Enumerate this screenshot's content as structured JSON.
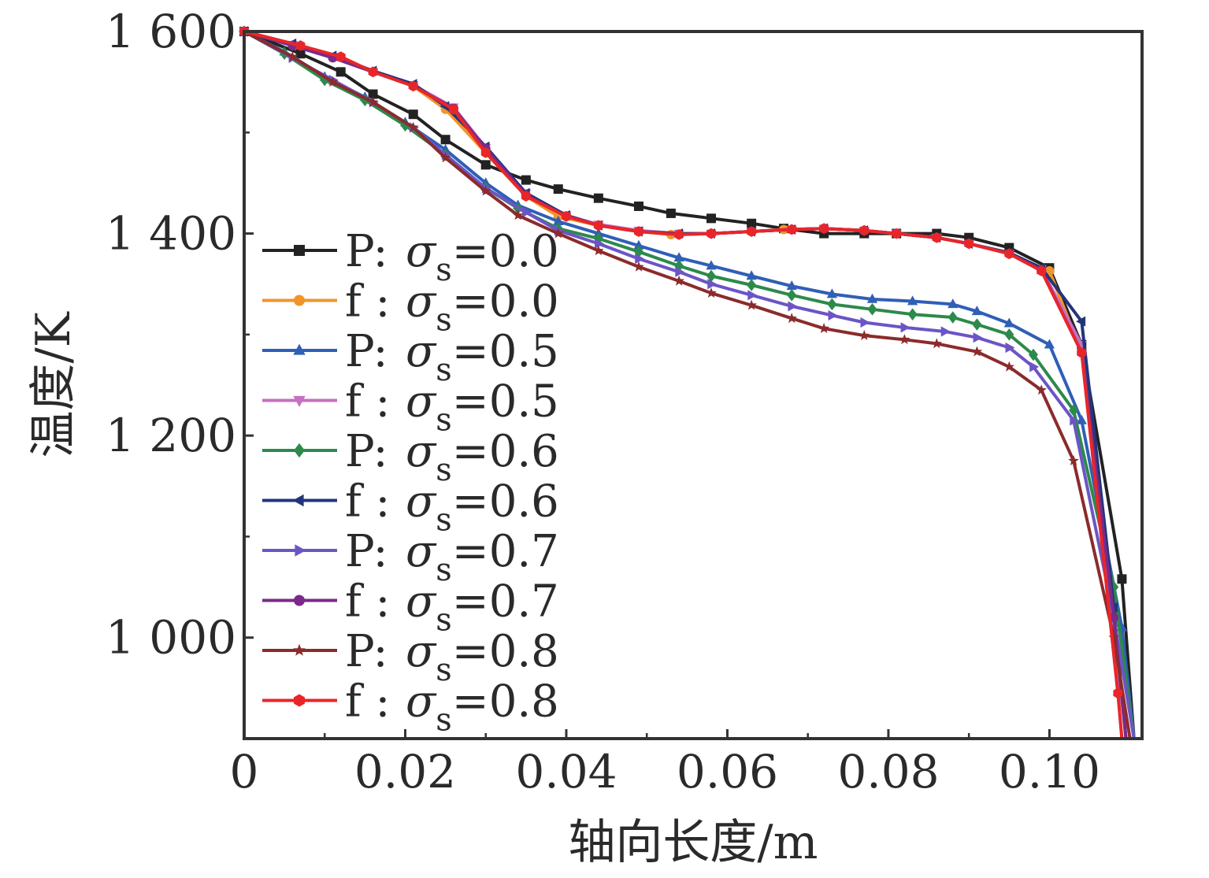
{
  "chart_data": {
    "type": "line",
    "xlabel": "轴向长度/m",
    "ylabel": "温度/K",
    "xlim": [
      0,
      0.1115
    ],
    "ylim": [
      900,
      1600
    ],
    "xticks": [
      {
        "value": 0,
        "label": "0"
      },
      {
        "value": 0.02,
        "label": "0.02"
      },
      {
        "value": 0.04,
        "label": "0.04"
      },
      {
        "value": 0.06,
        "label": "0.06"
      },
      {
        "value": 0.08,
        "label": "0.08"
      },
      {
        "value": 0.1,
        "label": "0.10"
      }
    ],
    "yticks": [
      {
        "value": 1000,
        "label": "1 000"
      },
      {
        "value": 1200,
        "label": "1 200"
      },
      {
        "value": 1400,
        "label": "1 400"
      },
      {
        "value": 1600,
        "label": "1 600"
      }
    ],
    "grid": false,
    "legend_position": "left",
    "series": [
      {
        "name": "P: σs=0.0",
        "prefix": "P: ",
        "sigma": "σ",
        "sub": "s",
        "value_text": "=0.0",
        "color": "#222222",
        "marker": "square",
        "x": [
          0,
          0.007,
          0.012,
          0.016,
          0.021,
          0.025,
          0.03,
          0.035,
          0.039,
          0.044,
          0.049,
          0.053,
          0.058,
          0.063,
          0.067,
          0.072,
          0.077,
          0.081,
          0.086,
          0.09,
          0.095,
          0.1,
          0.104,
          0.109,
          0.1105
        ],
        "y": [
          1600,
          1578,
          1560,
          1538,
          1518,
          1493,
          1468,
          1453,
          1444,
          1435,
          1427,
          1420,
          1415,
          1410,
          1405,
          1400,
          1400,
          1400,
          1400,
          1396,
          1386,
          1366,
          1290,
          1058,
          900
        ]
      },
      {
        "name": "f : σs=0.0",
        "prefix": "f : ",
        "sigma": "σ",
        "sub": "s",
        "value_text": "=0.0",
        "color": "#f0952c",
        "marker": "circle",
        "x": [
          0,
          0.007,
          0.012,
          0.016,
          0.021,
          0.025,
          0.03,
          0.035,
          0.039,
          0.044,
          0.049,
          0.053,
          0.058,
          0.063,
          0.067,
          0.072,
          0.077,
          0.081,
          0.086,
          0.09,
          0.095,
          0.1,
          0.104,
          0.1075,
          0.109
        ],
        "y": [
          1600,
          1586,
          1575,
          1560,
          1546,
          1523,
          1480,
          1437,
          1417,
          1408,
          1402,
          1399,
          1400,
          1402,
          1404,
          1405,
          1403,
          1400,
          1396,
          1390,
          1380,
          1363,
          1282,
          1040,
          900
        ]
      },
      {
        "name": "P: σs=0.5",
        "prefix": "P: ",
        "sigma": "σ",
        "sub": "s",
        "value_text": "=0.5",
        "color": "#2f5fb7",
        "marker": "triangle-up",
        "x": [
          0,
          0.005,
          0.01,
          0.015,
          0.02,
          0.025,
          0.03,
          0.034,
          0.039,
          0.044,
          0.049,
          0.054,
          0.058,
          0.063,
          0.068,
          0.073,
          0.078,
          0.083,
          0.088,
          0.091,
          0.095,
          0.1,
          0.104,
          0.109,
          0.1105
        ],
        "y": [
          1600,
          1580,
          1555,
          1535,
          1510,
          1483,
          1450,
          1428,
          1412,
          1400,
          1388,
          1376,
          1368,
          1358,
          1348,
          1340,
          1335,
          1333,
          1330,
          1323,
          1311,
          1290,
          1215,
          1010,
          900
        ]
      },
      {
        "name": "f : σs=0.5",
        "prefix": "f : ",
        "sigma": "σ",
        "sub": "s",
        "value_text": "=0.5",
        "color": "#c66fc4",
        "marker": "triangle-down",
        "x": [
          0,
          0.006,
          0.011,
          0.016,
          0.021,
          0.026,
          0.03,
          0.035,
          0.04,
          0.044,
          0.049,
          0.054,
          0.058,
          0.063,
          0.068,
          0.072,
          0.077,
          0.081,
          0.086,
          0.09,
          0.095,
          0.099,
          0.104,
          0.108,
          0.1095
        ],
        "y": [
          1600,
          1587,
          1575,
          1560,
          1547,
          1525,
          1485,
          1440,
          1418,
          1409,
          1403,
          1400,
          1400,
          1402,
          1404,
          1405,
          1403,
          1400,
          1396,
          1390,
          1380,
          1365,
          1290,
          1010,
          900
        ]
      },
      {
        "name": "P: σs=0.6",
        "prefix": "P: ",
        "sigma": "σ",
        "sub": "s",
        "value_text": "=0.6",
        "color": "#2c8a4a",
        "marker": "diamond",
        "x": [
          0,
          0.005,
          0.01,
          0.015,
          0.02,
          0.025,
          0.03,
          0.034,
          0.039,
          0.044,
          0.049,
          0.054,
          0.058,
          0.063,
          0.068,
          0.073,
          0.078,
          0.083,
          0.088,
          0.091,
          0.095,
          0.098,
          0.103,
          0.108,
          0.1105
        ],
        "y": [
          1600,
          1578,
          1552,
          1532,
          1507,
          1478,
          1445,
          1425,
          1405,
          1395,
          1382,
          1368,
          1358,
          1349,
          1339,
          1330,
          1325,
          1320,
          1317,
          1310,
          1300,
          1280,
          1225,
          1050,
          900
        ]
      },
      {
        "name": "f : σs=0.6",
        "prefix": "f : ",
        "sigma": "σ",
        "sub": "s",
        "value_text": "=0.6",
        "color": "#23357a",
        "marker": "triangle-left",
        "x": [
          0,
          0.006,
          0.011,
          0.016,
          0.021,
          0.025,
          0.03,
          0.035,
          0.04,
          0.044,
          0.049,
          0.054,
          0.058,
          0.063,
          0.068,
          0.072,
          0.077,
          0.081,
          0.086,
          0.09,
          0.095,
          0.099,
          0.104,
          0.108,
          0.1095
        ],
        "y": [
          1600,
          1588,
          1576,
          1561,
          1548,
          1526,
          1486,
          1440,
          1418,
          1408,
          1402,
          1400,
          1400,
          1402,
          1404,
          1405,
          1403,
          1400,
          1396,
          1390,
          1381,
          1366,
          1313,
          1030,
          900
        ]
      },
      {
        "name": "P: σs=0.7",
        "prefix": "P: ",
        "sigma": "σ",
        "sub": "s",
        "value_text": "=0.7",
        "color": "#6b55c6",
        "marker": "triangle-right",
        "x": [
          0,
          0.006,
          0.011,
          0.016,
          0.021,
          0.025,
          0.03,
          0.035,
          0.039,
          0.044,
          0.049,
          0.054,
          0.058,
          0.063,
          0.068,
          0.073,
          0.077,
          0.082,
          0.087,
          0.091,
          0.095,
          0.098,
          0.103,
          0.108,
          0.1105
        ],
        "y": [
          1600,
          1574,
          1552,
          1530,
          1505,
          1478,
          1445,
          1421,
          1403,
          1390,
          1375,
          1362,
          1350,
          1339,
          1328,
          1319,
          1312,
          1307,
          1303,
          1297,
          1287,
          1268,
          1215,
          1020,
          900
        ]
      },
      {
        "name": "f : σs=0.7",
        "prefix": "f : ",
        "sigma": "σ",
        "sub": "s",
        "value_text": "=0.7",
        "color": "#7a2a8a",
        "marker": "circle",
        "x": [
          0,
          0.006,
          0.011,
          0.016,
          0.021,
          0.026,
          0.03,
          0.035,
          0.04,
          0.044,
          0.049,
          0.054,
          0.058,
          0.063,
          0.068,
          0.072,
          0.077,
          0.081,
          0.086,
          0.09,
          0.095,
          0.099,
          0.104,
          0.108,
          0.1095
        ],
        "y": [
          1600,
          1586,
          1574,
          1560,
          1546,
          1524,
          1484,
          1438,
          1417,
          1408,
          1402,
          1399,
          1400,
          1402,
          1404,
          1405,
          1403,
          1400,
          1396,
          1390,
          1380,
          1364,
          1282,
          1020,
          900
        ]
      },
      {
        "name": "P: σs=0.8",
        "prefix": "P: ",
        "sigma": "σ",
        "sub": "s",
        "value_text": "=0.8",
        "color": "#8b2b2b",
        "marker": "star",
        "x": [
          0,
          0.006,
          0.011,
          0.016,
          0.021,
          0.025,
          0.03,
          0.034,
          0.039,
          0.044,
          0.049,
          0.054,
          0.058,
          0.063,
          0.068,
          0.072,
          0.077,
          0.082,
          0.086,
          0.091,
          0.095,
          0.099,
          0.103,
          0.108,
          0.11
        ],
        "y": [
          1600,
          1575,
          1550,
          1530,
          1505,
          1475,
          1442,
          1418,
          1400,
          1383,
          1367,
          1353,
          1341,
          1329,
          1316,
          1306,
          1299,
          1295,
          1291,
          1283,
          1268,
          1245,
          1175,
          1000,
          900
        ]
      },
      {
        "name": "f : σs=0.8",
        "prefix": "f : ",
        "sigma": "σ",
        "sub": "s",
        "value_text": "=0.8",
        "color": "#e8262a",
        "marker": "hexagon",
        "x": [
          0,
          0.007,
          0.012,
          0.016,
          0.021,
          0.026,
          0.03,
          0.035,
          0.04,
          0.044,
          0.049,
          0.054,
          0.058,
          0.063,
          0.068,
          0.072,
          0.077,
          0.081,
          0.086,
          0.09,
          0.095,
          0.099,
          0.104,
          0.1085,
          0.109
        ],
        "y": [
          1600,
          1586,
          1575,
          1560,
          1546,
          1523,
          1480,
          1437,
          1417,
          1408,
          1402,
          1399,
          1400,
          1402,
          1404,
          1405,
          1403,
          1400,
          1396,
          1390,
          1380,
          1363,
          1282,
          945,
          900
        ]
      }
    ]
  }
}
